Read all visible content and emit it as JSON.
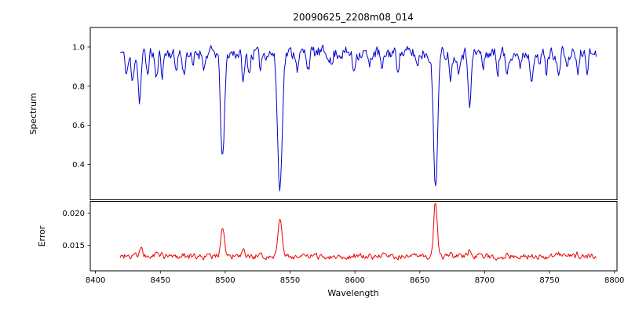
{
  "figure": {
    "background": "#ffffff",
    "spine_color": "#000000",
    "text_color": "#000000"
  },
  "chart_data": {
    "type": "line",
    "title": "20090625_2208m08_014",
    "xlabel": "Wavelength",
    "grid": false,
    "legend": null,
    "xlim": [
      8396,
      8802
    ],
    "x_ticks": [
      8400,
      8450,
      8500,
      8550,
      8600,
      8650,
      8700,
      8750,
      8800
    ],
    "x_tick_labels": [
      "8400",
      "8450",
      "8500",
      "8550",
      "8600",
      "8650",
      "8700",
      "8750",
      "8800"
    ],
    "panels": [
      {
        "ylabel": "Spectrum",
        "ylim": [
          0.22,
          1.1
        ],
        "y_ticks": [
          0.4,
          0.6,
          0.8,
          1.0
        ],
        "y_tick_labels": [
          "0.4",
          "0.6",
          "0.8",
          "1.0"
        ],
        "color": "#0000cd",
        "series": {
          "seed": 11,
          "x_start": 8419,
          "x_end": 8786,
          "n_points": 520,
          "continuum": 0.97,
          "noise_amplitude": 0.03,
          "absorption_lines": [
            {
              "center": 8424.0,
              "amplitude": 0.1,
              "sigma": 1.2
            },
            {
              "center": 8428.5,
              "amplitude": 0.16,
              "sigma": 1.0
            },
            {
              "center": 8434.0,
              "amplitude": 0.24,
              "sigma": 1.1
            },
            {
              "center": 8440.0,
              "amplitude": 0.1,
              "sigma": 1.0
            },
            {
              "center": 8447.0,
              "amplitude": 0.14,
              "sigma": 1.0
            },
            {
              "center": 8451.5,
              "amplitude": 0.1,
              "sigma": 0.9
            },
            {
              "center": 8462.0,
              "amplitude": 0.08,
              "sigma": 1.0
            },
            {
              "center": 8468.0,
              "amplitude": 0.11,
              "sigma": 1.0
            },
            {
              "center": 8475.0,
              "amplitude": 0.08,
              "sigma": 0.9
            },
            {
              "center": 8484.0,
              "amplitude": 0.07,
              "sigma": 0.9
            },
            {
              "center": 8498.0,
              "amplitude": 0.545,
              "sigma": 1.5
            },
            {
              "center": 8514.0,
              "amplitude": 0.14,
              "sigma": 1.1
            },
            {
              "center": 8518.5,
              "amplitude": 0.1,
              "sigma": 0.9
            },
            {
              "center": 8527.0,
              "amplitude": 0.07,
              "sigma": 0.9
            },
            {
              "center": 8542.1,
              "amplitude": 0.705,
              "sigma": 1.7
            },
            {
              "center": 8556.0,
              "amplitude": 0.08,
              "sigma": 0.9
            },
            {
              "center": 8564.0,
              "amplitude": 0.07,
              "sigma": 0.9
            },
            {
              "center": 8582.0,
              "amplitude": 0.07,
              "sigma": 0.9
            },
            {
              "center": 8599.0,
              "amplitude": 0.09,
              "sigma": 1.0
            },
            {
              "center": 8611.0,
              "amplitude": 0.08,
              "sigma": 0.9
            },
            {
              "center": 8621.0,
              "amplitude": 0.1,
              "sigma": 1.0
            },
            {
              "center": 8633.0,
              "amplitude": 0.07,
              "sigma": 0.9
            },
            {
              "center": 8648.0,
              "amplitude": 0.07,
              "sigma": 0.9
            },
            {
              "center": 8662.1,
              "amplitude": 0.685,
              "sigma": 1.6
            },
            {
              "center": 8674.0,
              "amplitude": 0.12,
              "sigma": 1.0
            },
            {
              "center": 8679.5,
              "amplitude": 0.09,
              "sigma": 0.9
            },
            {
              "center": 8688.5,
              "amplitude": 0.24,
              "sigma": 1.2
            },
            {
              "center": 8699.0,
              "amplitude": 0.08,
              "sigma": 0.9
            },
            {
              "center": 8710.0,
              "amplitude": 0.09,
              "sigma": 0.9
            },
            {
              "center": 8717.0,
              "amplitude": 0.11,
              "sigma": 1.0
            },
            {
              "center": 8727.0,
              "amplitude": 0.08,
              "sigma": 0.9
            },
            {
              "center": 8736.0,
              "amplitude": 0.12,
              "sigma": 1.0
            },
            {
              "center": 8742.0,
              "amplitude": 0.08,
              "sigma": 0.9
            },
            {
              "center": 8747.5,
              "amplitude": 0.1,
              "sigma": 0.9
            },
            {
              "center": 8757.0,
              "amplitude": 0.13,
              "sigma": 1.0
            },
            {
              "center": 8764.0,
              "amplitude": 0.08,
              "sigma": 0.9
            },
            {
              "center": 8772.0,
              "amplitude": 0.11,
              "sigma": 1.0
            },
            {
              "center": 8779.0,
              "amplitude": 0.08,
              "sigma": 0.9
            }
          ]
        }
      },
      {
        "ylabel": "Error",
        "ylim": [
          0.0111,
          0.0218
        ],
        "y_ticks": [
          0.015,
          0.02
        ],
        "y_tick_labels": [
          "0.015",
          "0.020"
        ],
        "color": "#ee0000",
        "series": {
          "seed": 99,
          "x_start": 8419,
          "x_end": 8786,
          "n_points": 520,
          "baseline": 0.0133,
          "noise_amplitude": 0.0004,
          "emission_peaks": [
            {
              "center": 8424.0,
              "amplitude": 0.0005,
              "sigma": 1.0
            },
            {
              "center": 8430.0,
              "amplitude": 0.0007,
              "sigma": 1.0
            },
            {
              "center": 8435.0,
              "amplitude": 0.0013,
              "sigma": 1.0
            },
            {
              "center": 8447.0,
              "amplitude": 0.0006,
              "sigma": 1.0
            },
            {
              "center": 8451.5,
              "amplitude": 0.0005,
              "sigma": 0.9
            },
            {
              "center": 8468.0,
              "amplitude": 0.0004,
              "sigma": 0.9
            },
            {
              "center": 8498.0,
              "amplitude": 0.0047,
              "sigma": 1.4
            },
            {
              "center": 8514.0,
              "amplitude": 0.0007,
              "sigma": 1.0
            },
            {
              "center": 8542.1,
              "amplitude": 0.0063,
              "sigma": 1.5
            },
            {
              "center": 8599.0,
              "amplitude": 0.0003,
              "sigma": 0.9
            },
            {
              "center": 8621.0,
              "amplitude": 0.0003,
              "sigma": 0.9
            },
            {
              "center": 8662.1,
              "amplitude": 0.0083,
              "sigma": 1.4
            },
            {
              "center": 8674.0,
              "amplitude": 0.0004,
              "sigma": 0.9
            },
            {
              "center": 8688.5,
              "amplitude": 0.0013,
              "sigma": 1.1
            },
            {
              "center": 8717.0,
              "amplitude": 0.0004,
              "sigma": 0.9
            },
            {
              "center": 8736.0,
              "amplitude": 0.0004,
              "sigma": 0.9
            },
            {
              "center": 8757.0,
              "amplitude": 0.0005,
              "sigma": 0.9
            },
            {
              "center": 8772.0,
              "amplitude": 0.0004,
              "sigma": 0.9
            }
          ]
        }
      }
    ]
  }
}
